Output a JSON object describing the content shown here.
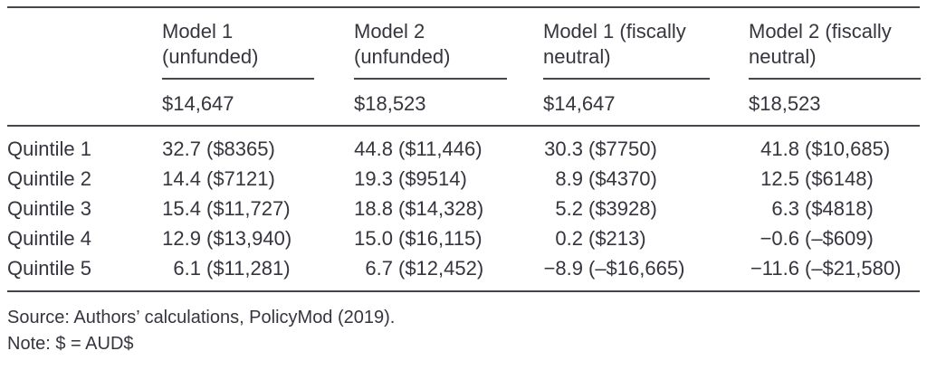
{
  "page": {
    "background_color": "#ffffff",
    "text_color": "#35353e",
    "rule_color": "#45454c"
  },
  "table": {
    "header": {
      "columns": [
        {
          "line1": "Model 1",
          "line2": "(unfunded)",
          "amount": "$14,647"
        },
        {
          "line1": "Model 2",
          "line2": "(unfunded)",
          "amount": "$18,523"
        },
        {
          "line1": "Model 1 (fiscally",
          "line2": "neutral)",
          "amount": "$14,647"
        },
        {
          "line1": "Model 2 (fiscally",
          "line2": "neutral)",
          "amount": "$18,523"
        }
      ]
    },
    "rows": [
      {
        "label": "Quintile 1",
        "cells": [
          {
            "num": "32.7",
            "paren": "($8365)"
          },
          {
            "num": "44.8",
            "paren": "($11,446)"
          },
          {
            "num": "30.3",
            "paren": "($7750)"
          },
          {
            "num": "41.8",
            "paren": "($10,685)"
          }
        ]
      },
      {
        "label": "Quintile 2",
        "cells": [
          {
            "num": "14.4",
            "paren": "($7121)"
          },
          {
            "num": "19.3",
            "paren": "($9514)"
          },
          {
            "num": "8.9",
            "paren": "($4370)"
          },
          {
            "num": "12.5",
            "paren": "($6148)"
          }
        ]
      },
      {
        "label": "Quintile 3",
        "cells": [
          {
            "num": "15.4",
            "paren": "($11,727)"
          },
          {
            "num": "18.8",
            "paren": "($14,328)"
          },
          {
            "num": "5.2",
            "paren": "($3928)"
          },
          {
            "num": "6.3",
            "paren": "($4818)"
          }
        ]
      },
      {
        "label": "Quintile 4",
        "cells": [
          {
            "num": "12.9",
            "paren": "($13,940)"
          },
          {
            "num": "15.0",
            "paren": "($16,115)"
          },
          {
            "num": "0.2",
            "paren": "($213)"
          },
          {
            "num": "−0.6",
            "paren": "(–$609)"
          }
        ]
      },
      {
        "label": "Quintile 5",
        "cells": [
          {
            "num": "6.1",
            "paren": "($11,281)"
          },
          {
            "num": "6.7",
            "paren": "($12,452)"
          },
          {
            "num": "−8.9",
            "paren": "(–$16,665)"
          },
          {
            "num": "−11.6",
            "paren": "(–$21,580)"
          }
        ]
      }
    ]
  },
  "notes": {
    "source": "Source: Authors’ calculations, PolicyMod (2019).",
    "note": "Note: $ = AUD$"
  }
}
